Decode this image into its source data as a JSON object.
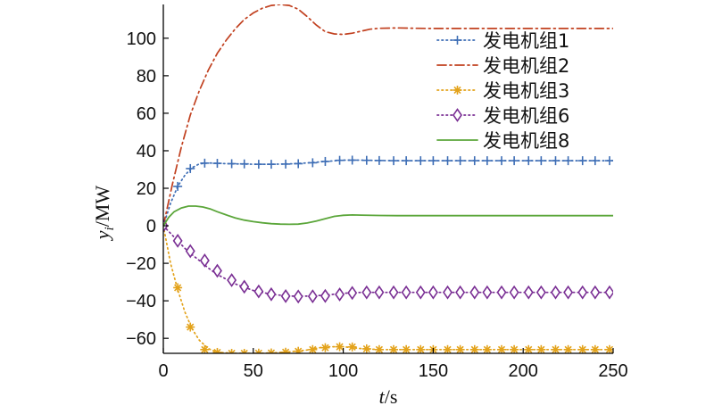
{
  "chart_data": {
    "type": "line",
    "title": "",
    "xlabel": {
      "var": "t",
      "unit": "/s"
    },
    "ylabel": {
      "var": "y",
      "sub": "i",
      "unit": "/MW"
    },
    "xlim": [
      0,
      250
    ],
    "ylim": [
      -68,
      118
    ],
    "xticks": [
      "0",
      "50",
      "100",
      "150",
      "200",
      "250"
    ],
    "xtick_values": [
      0,
      50,
      100,
      150,
      200,
      250
    ],
    "yticks": [
      "−60",
      "−40",
      "−20",
      "0",
      "20",
      "40",
      "60",
      "80",
      "100"
    ],
    "ytick_values": [
      -60,
      -40,
      -20,
      0,
      20,
      40,
      60,
      80,
      100
    ],
    "grid": false,
    "legend_position": "top-right",
    "series": [
      {
        "name": "发电机组1",
        "color": "#3d6db5",
        "line": "dotted",
        "marker": "plus",
        "x": [
          0,
          4,
          8,
          12,
          16,
          20,
          25,
          30,
          40,
          50,
          60,
          70,
          80,
          90,
          100,
          110,
          120,
          130,
          140,
          150,
          175,
          200,
          225,
          250
        ],
        "y": [
          0,
          12,
          21,
          27,
          31,
          33,
          33.5,
          33.3,
          33,
          32.8,
          32.8,
          33,
          33.5,
          34.3,
          35,
          35,
          34.8,
          34.7,
          34.7,
          34.7,
          34.7,
          34.7,
          34.7,
          34.7
        ],
        "marker_x": [
          0,
          8,
          15,
          23,
          30,
          38,
          45,
          53,
          60,
          68,
          75,
          83,
          90,
          98,
          105,
          113,
          120,
          128,
          135,
          143,
          150,
          158,
          165,
          173,
          180,
          188,
          195,
          203,
          210,
          218,
          225,
          233,
          240,
          248
        ],
        "marker_y": [
          0,
          21,
          30.5,
          33.4,
          33.3,
          33.1,
          33,
          32.8,
          32.8,
          32.9,
          33.1,
          33.6,
          34.3,
          34.9,
          35,
          34.9,
          34.8,
          34.7,
          34.7,
          34.7,
          34.7,
          34.7,
          34.7,
          34.7,
          34.7,
          34.7,
          34.7,
          34.7,
          34.7,
          34.7,
          34.7,
          34.7,
          34.7,
          34.7
        ]
      },
      {
        "name": "发电机组2",
        "color": "#c1401f",
        "line": "dashdot",
        "marker": "none",
        "x": [
          0,
          5,
          10,
          15,
          20,
          25,
          30,
          35,
          40,
          45,
          50,
          55,
          60,
          65,
          70,
          75,
          80,
          85,
          90,
          95,
          100,
          105,
          110,
          115,
          120,
          130,
          140,
          150,
          175,
          200,
          225,
          250
        ],
        "y": [
          0,
          22,
          42,
          59,
          72,
          83,
          92,
          99,
          105,
          110,
          113.5,
          116,
          117.5,
          118,
          117.5,
          115.5,
          111.5,
          107,
          103.5,
          102.3,
          102,
          102.7,
          103.8,
          104.8,
          105.3,
          105.5,
          105.3,
          105.2,
          105.2,
          105.2,
          105.2,
          105.2
        ]
      },
      {
        "name": "发电机组3",
        "color": "#e3a21a",
        "line": "dotted",
        "marker": "asterisk",
        "x": [
          0,
          4,
          8,
          12,
          16,
          20,
          25,
          30,
          40,
          50,
          60,
          70,
          80,
          90,
          100,
          110,
          120,
          130,
          140,
          150,
          175,
          200,
          225,
          250
        ],
        "y": [
          0,
          -20,
          -34,
          -46,
          -55,
          -61,
          -65.5,
          -67.5,
          -68,
          -68,
          -67.8,
          -67.2,
          -66.2,
          -64.5,
          -64.5,
          -65.5,
          -66,
          -66,
          -66,
          -66,
          -66,
          -66,
          -66,
          -66
        ],
        "marker_x": [
          0,
          8,
          15,
          23,
          30,
          38,
          45,
          53,
          60,
          68,
          75,
          83,
          90,
          98,
          105,
          113,
          120,
          128,
          135,
          143,
          150,
          158,
          165,
          173,
          180,
          188,
          195,
          203,
          210,
          218,
          225,
          233,
          240,
          248
        ],
        "marker_y": [
          0,
          -33,
          -54,
          -66,
          -67.5,
          -68,
          -68,
          -67.9,
          -67.8,
          -67.4,
          -66.9,
          -66,
          -65,
          -64.5,
          -64.6,
          -65.6,
          -66,
          -66,
          -66,
          -66,
          -66,
          -66,
          -66,
          -66,
          -66,
          -66,
          -66,
          -66,
          -66,
          -66,
          -66,
          -66,
          -66,
          -66
        ]
      },
      {
        "name": "发电机组6",
        "color": "#7a2f94",
        "line": "dotted",
        "marker": "diamond",
        "x": [
          0,
          4,
          8,
          12,
          16,
          20,
          25,
          30,
          40,
          50,
          60,
          70,
          80,
          90,
          100,
          110,
          120,
          130,
          140,
          150,
          175,
          200,
          225,
          250
        ],
        "y": [
          0,
          -4,
          -8,
          -12,
          -15.5,
          -18.5,
          -22.5,
          -26,
          -31,
          -34.5,
          -36.5,
          -37.5,
          -37.5,
          -37,
          -36,
          -35.5,
          -35.5,
          -35.5,
          -35.5,
          -35.5,
          -35.5,
          -35.5,
          -35.5,
          -35.5
        ],
        "marker_x": [
          0,
          8,
          15,
          23,
          30,
          38,
          45,
          53,
          60,
          68,
          75,
          83,
          90,
          98,
          105,
          113,
          120,
          128,
          135,
          143,
          150,
          158,
          165,
          173,
          180,
          188,
          195,
          203,
          210,
          218,
          225,
          233,
          240,
          248
        ],
        "marker_y": [
          0,
          -8,
          -13.5,
          -18.5,
          -24,
          -29,
          -32.5,
          -35,
          -36.5,
          -37.5,
          -37.7,
          -37.6,
          -37.4,
          -36.6,
          -35.8,
          -35.5,
          -35.5,
          -35.5,
          -35.5,
          -35.5,
          -35.5,
          -35.5,
          -35.5,
          -35.5,
          -35.5,
          -35.5,
          -35.5,
          -35.5,
          -35.5,
          -35.5,
          -35.5,
          -35.5,
          -35.5,
          -35.5
        ]
      },
      {
        "name": "发电机组8",
        "color": "#5ba63a",
        "line": "solid",
        "marker": "none",
        "x": [
          0,
          3,
          6,
          10,
          14,
          18,
          22,
          26,
          30,
          35,
          40,
          45,
          50,
          55,
          60,
          65,
          70,
          75,
          80,
          85,
          90,
          95,
          100,
          105,
          110,
          120,
          130,
          140,
          150,
          175,
          200,
          225,
          250
        ],
        "y": [
          0,
          4.5,
          7.5,
          9.5,
          10.5,
          10.5,
          10,
          9,
          7.5,
          5.8,
          4.2,
          3,
          2.2,
          1.6,
          1.1,
          0.9,
          0.8,
          0.9,
          1.5,
          2.5,
          3.8,
          5,
          5.6,
          5.8,
          5.7,
          5.5,
          5.4,
          5.4,
          5.4,
          5.4,
          5.4,
          5.4,
          5.4
        ]
      }
    ]
  }
}
